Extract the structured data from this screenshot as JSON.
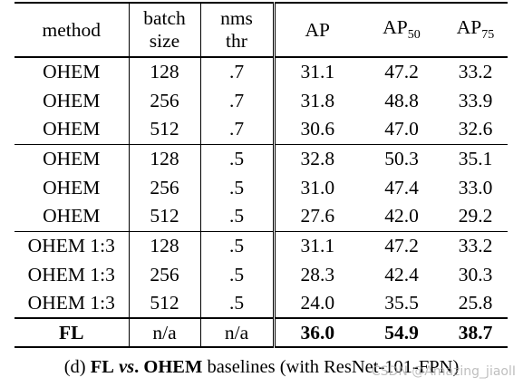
{
  "table": {
    "headers": {
      "method": "method",
      "batch_line1": "batch",
      "batch_line2": "size",
      "nms_line1": "nms",
      "nms_line2": "thr",
      "ap": "AP",
      "ap50_base": "AP",
      "ap50_sub": "50",
      "ap75_base": "AP",
      "ap75_sub": "75"
    },
    "rows": [
      {
        "method": "OHEM",
        "batch": "128",
        "nms": ".7",
        "ap": "31.1",
        "ap50": "47.2",
        "ap75": "33.2"
      },
      {
        "method": "OHEM",
        "batch": "256",
        "nms": ".7",
        "ap": "31.8",
        "ap50": "48.8",
        "ap75": "33.9"
      },
      {
        "method": "OHEM",
        "batch": "512",
        "nms": ".7",
        "ap": "30.6",
        "ap50": "47.0",
        "ap75": "32.6"
      },
      {
        "method": "OHEM",
        "batch": "128",
        "nms": ".5",
        "ap": "32.8",
        "ap50": "50.3",
        "ap75": "35.1"
      },
      {
        "method": "OHEM",
        "batch": "256",
        "nms": ".5",
        "ap": "31.0",
        "ap50": "47.4",
        "ap75": "33.0"
      },
      {
        "method": "OHEM",
        "batch": "512",
        "nms": ".5",
        "ap": "27.6",
        "ap50": "42.0",
        "ap75": "29.2"
      },
      {
        "method": "OHEM 1:3",
        "batch": "128",
        "nms": ".5",
        "ap": "31.1",
        "ap50": "47.2",
        "ap75": "33.2"
      },
      {
        "method": "OHEM 1:3",
        "batch": "256",
        "nms": ".5",
        "ap": "28.3",
        "ap50": "42.4",
        "ap75": "30.3"
      },
      {
        "method": "OHEM 1:3",
        "batch": "512",
        "nms": ".5",
        "ap": "24.0",
        "ap50": "35.5",
        "ap75": "25.8"
      },
      {
        "method": "FL",
        "batch": "n/a",
        "nms": "n/a",
        "ap": "36.0",
        "ap50": "54.9",
        "ap75": "38.7"
      }
    ]
  },
  "caption": {
    "prefix": "(d) ",
    "fl": "FL",
    "vs": " vs",
    "ohem": ". OHEM",
    "rest": " baselines (with ResNet-101-FPN)"
  },
  "watermark": "CSDN @Amazing_jiaolI"
}
